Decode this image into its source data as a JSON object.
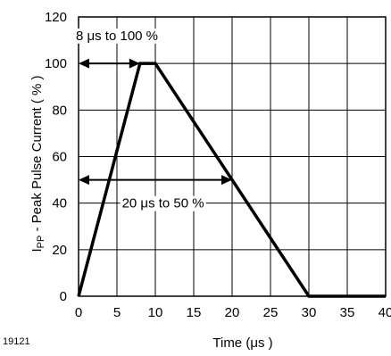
{
  "chart_data": {
    "type": "line",
    "xlabel": "Time (μs )",
    "ylabel_main": "I",
    "ylabel_sub": "PP",
    "ylabel_rest": "  - Peak Pulse Current ( % )",
    "xlim": [
      0,
      40
    ],
    "ylim": [
      0,
      120
    ],
    "xticks": [
      0,
      5,
      10,
      15,
      20,
      25,
      30,
      35,
      40
    ],
    "yticks": [
      0,
      20,
      40,
      60,
      80,
      100,
      120
    ],
    "grid": true,
    "series": [
      {
        "points": [
          [
            0,
            0
          ],
          [
            8,
            100
          ],
          [
            10,
            100
          ],
          [
            30,
            0
          ],
          [
            40,
            0
          ]
        ]
      }
    ],
    "annotations": [
      {
        "text": "8 μs to 100 %",
        "from": [
          0,
          100
        ],
        "to": [
          8,
          100
        ],
        "label_at": [
          5,
          112
        ]
      },
      {
        "text": "20 μs to 50 %",
        "from": [
          0,
          50
        ],
        "to": [
          20,
          50
        ],
        "label_at": [
          11,
          40
        ]
      }
    ],
    "figure_code": "19121"
  },
  "colors": {
    "line": "#000000",
    "grid": "#000000",
    "background": "#ffffff"
  }
}
